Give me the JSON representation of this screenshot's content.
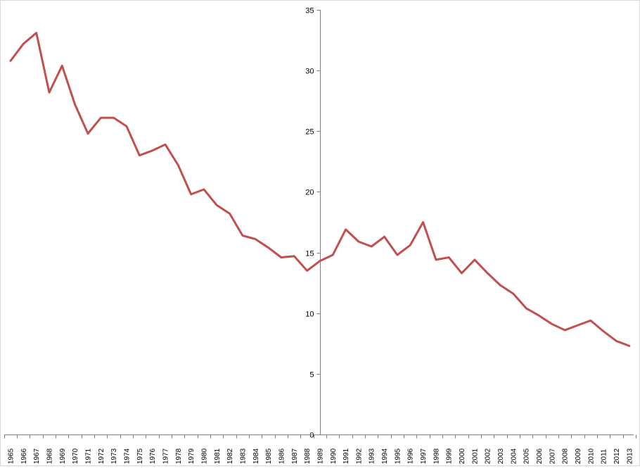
{
  "chart_data": {
    "type": "line",
    "title": "",
    "xlabel": "",
    "ylabel": "",
    "ylim": [
      0,
      35
    ],
    "y_ticks": [
      0,
      5,
      10,
      15,
      20,
      25,
      30,
      35
    ],
    "y_axis_crosses_at": "1989",
    "x_tick_label_orientation": "vertical",
    "grid": false,
    "legend": "none",
    "line_color": "#c0504d",
    "x": [
      "1965",
      "1966",
      "1967",
      "1968",
      "1969",
      "1970",
      "1971",
      "1972",
      "1973",
      "1974",
      "1975",
      "1976",
      "1977",
      "1978",
      "1979",
      "1980",
      "1981",
      "1982",
      "1983",
      "1984",
      "1985",
      "1986",
      "1987",
      "1988",
      "1989",
      "1990",
      "1991",
      "1992",
      "1993",
      "1994",
      "1995",
      "1996",
      "1997",
      "1998",
      "1999",
      "2000",
      "2001",
      "2002",
      "2003",
      "2004",
      "2005",
      "2006",
      "2007",
      "2008",
      "2009",
      "2010",
      "2011",
      "2012",
      "2013"
    ],
    "series": [
      {
        "values": [
          30.8,
          32.2,
          33.1,
          28.2,
          30.4,
          27.2,
          24.8,
          26.1,
          26.1,
          25.4,
          23.0,
          23.4,
          23.9,
          22.2,
          19.8,
          20.2,
          18.9,
          18.2,
          16.4,
          16.1,
          15.4,
          14.6,
          14.7,
          13.5,
          14.3,
          14.8,
          16.9,
          15.9,
          15.5,
          16.3,
          14.8,
          15.6,
          17.5,
          14.4,
          14.6,
          13.3,
          14.4,
          13.3,
          12.3,
          11.6,
          10.4,
          9.8,
          9.1,
          8.6,
          9.0,
          9.4,
          8.5,
          7.7,
          7.3
        ]
      }
    ]
  }
}
